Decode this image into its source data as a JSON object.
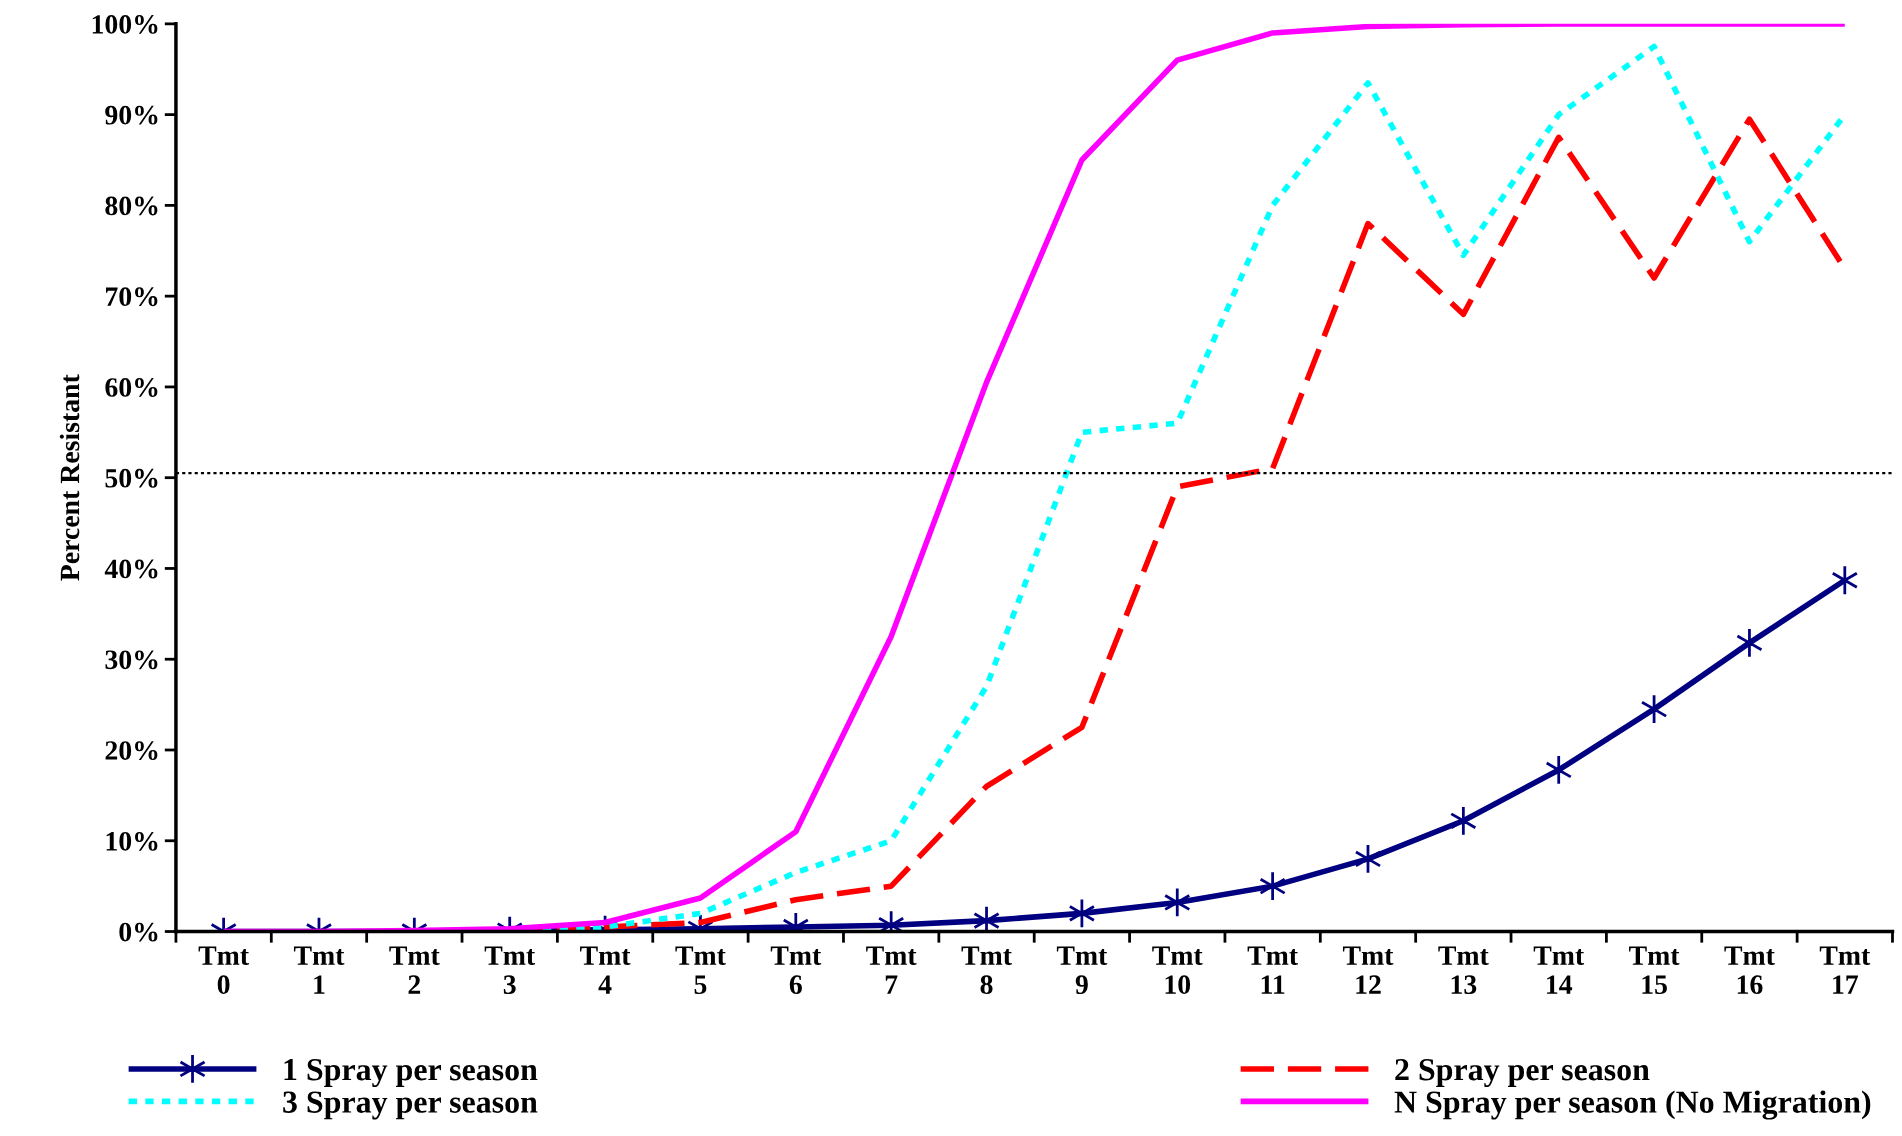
{
  "chart_data": {
    "type": "line",
    "ylabel": "Percent Resistant",
    "categories": [
      "Tmt\n0",
      "Tmt\n1",
      "Tmt\n2",
      "Tmt\n3",
      "Tmt\n4",
      "Tmt\n5",
      "Tmt\n6",
      "Tmt\n7",
      "Tmt\n8",
      "Tmt\n9",
      "Tmt\n10",
      "Tmt\n11",
      "Tmt\n12",
      "Tmt\n13",
      "Tmt\n14",
      "Tmt\n15",
      "Tmt\n16",
      "Tmt\n17"
    ],
    "series": [
      {
        "name": "1 Spray per season",
        "color": "#000080",
        "marker": "cross",
        "line_style": "solid",
        "values": [
          0,
          0,
          0,
          0.1,
          0.2,
          0.3,
          0.5,
          0.7,
          1.2,
          2,
          3.2,
          5,
          8,
          12.2,
          17.8,
          24.5,
          31.8,
          38.7
        ]
      },
      {
        "name": "2 Spray per season",
        "color": "#ff0000",
        "marker": "none",
        "line_style": "dashed",
        "values": [
          null,
          null,
          null,
          0,
          0.5,
          1,
          3.5,
          5,
          16,
          22.5,
          49,
          51,
          78,
          68,
          87.5,
          72,
          89.5,
          73
        ]
      },
      {
        "name": "3 Spray per season",
        "color": "#00ffff",
        "marker": "none",
        "line_style": "dotted",
        "values": [
          null,
          null,
          null,
          0,
          0.5,
          2,
          6.5,
          10,
          27,
          55,
          56,
          80,
          93.5,
          74.5,
          90,
          97.5,
          76,
          90
        ]
      },
      {
        "name": "N Spray per season (No Migration)",
        "color": "#ff00ff",
        "marker": "none",
        "line_style": "solid",
        "values": [
          0,
          0,
          0.1,
          0.3,
          1,
          3.7,
          11,
          32.5,
          60.5,
          85,
          96,
          99,
          99.7,
          99.9,
          100,
          100,
          100,
          100
        ]
      }
    ],
    "ylim": [
      0,
      100
    ],
    "yticks": [
      {
        "value": 0,
        "label": "0%"
      },
      {
        "value": 10,
        "label": "10%"
      },
      {
        "value": 20,
        "label": "20%"
      },
      {
        "value": 30,
        "label": "30%"
      },
      {
        "value": 40,
        "label": "40%"
      },
      {
        "value": 50,
        "label": "50%"
      },
      {
        "value": 60,
        "label": "60%"
      },
      {
        "value": 70,
        "label": "70%"
      },
      {
        "value": 80,
        "label": "80%"
      },
      {
        "value": 90,
        "label": "90%"
      },
      {
        "value": 100,
        "label": "100%"
      }
    ],
    "ref_lines": [
      {
        "axis": "y",
        "value": 50.5,
        "label": null,
        "color": "#000000",
        "line_style": "dotted"
      }
    ],
    "grid": false,
    "legend": "bottom"
  }
}
